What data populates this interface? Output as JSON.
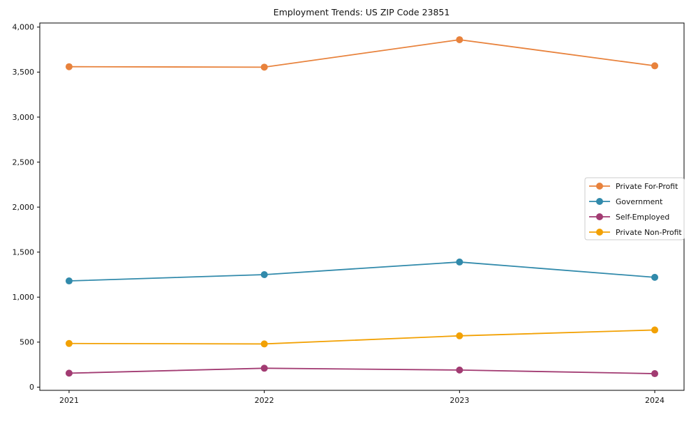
{
  "chart_data": {
    "type": "line",
    "title": "Employment Trends: US ZIP Code 23851",
    "xlabel": "",
    "ylabel": "",
    "x": [
      2021,
      2022,
      2023,
      2024
    ],
    "categories": [
      "2021",
      "2022",
      "2023",
      "2024"
    ],
    "series": [
      {
        "name": "Private For-Profit",
        "color": "#e8823c",
        "values": [
          3560,
          3555,
          3860,
          3570
        ]
      },
      {
        "name": "Government",
        "color": "#318aab",
        "values": [
          1180,
          1250,
          1390,
          1220
        ]
      },
      {
        "name": "Self-Employed",
        "color": "#a23b72",
        "values": [
          155,
          210,
          190,
          150
        ]
      },
      {
        "name": "Private Non-Profit",
        "color": "#f2a104",
        "values": [
          485,
          480,
          570,
          635
        ]
      }
    ],
    "yticks": [
      0,
      500,
      1000,
      1500,
      2000,
      2500,
      3000,
      3500,
      4000
    ],
    "ytick_labels": [
      "0",
      "500",
      "1,000",
      "1,500",
      "2,000",
      "2,500",
      "3,000",
      "3,500",
      "4,000"
    ],
    "ylim": [
      0,
      4000
    ],
    "grid": false,
    "legend_position": "center right",
    "marker": "circle",
    "line_width": 1.8,
    "marker_radius": 5,
    "axis_color": "#000000",
    "legend_border_color": "#cccccc",
    "background_color": "#ffffff"
  }
}
